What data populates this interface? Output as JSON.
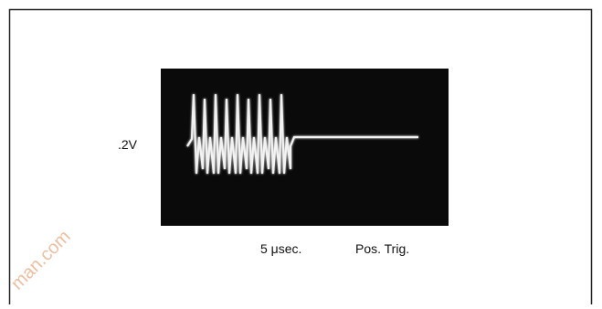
{
  "figure": {
    "labels": {
      "volts": ".2V",
      "time": "5 μsec.",
      "trigger": "Pos. Trig."
    }
  },
  "watermark": "man.com"
}
